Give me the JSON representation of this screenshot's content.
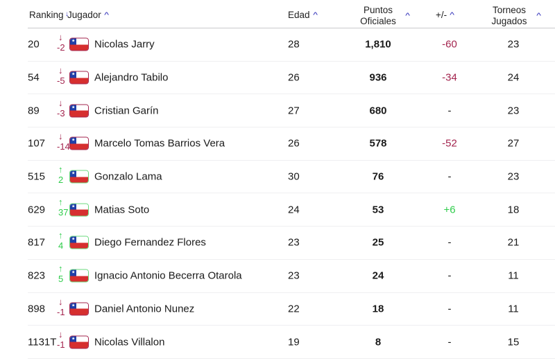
{
  "table": {
    "headers": {
      "ranking": "Ranking",
      "player": "Jugador",
      "age": "Edad",
      "points_line1": "Puntos",
      "points_line2": "Oficiales",
      "diff": "+/-",
      "tournaments_line1": "Torneos",
      "tournaments_line2": "Jugados",
      "sort_icon": "^"
    },
    "colors": {
      "down": "#a3244e",
      "up": "#2ecc4a",
      "sort": "#2b2bb8"
    },
    "rows": [
      {
        "rank": "20",
        "direction": "down",
        "arrow": "↓",
        "delta": "-2",
        "country": "Chile",
        "name": "Nicolas Jarry",
        "age": "28",
        "points": "1,810",
        "diff": "-60",
        "diff_type": "neg",
        "tournaments": "23"
      },
      {
        "rank": "54",
        "direction": "down",
        "arrow": "↓",
        "delta": "-5",
        "country": "Chile",
        "name": "Alejandro Tabilo",
        "age": "26",
        "points": "936",
        "diff": "-34",
        "diff_type": "neg",
        "tournaments": "24"
      },
      {
        "rank": "89",
        "direction": "down",
        "arrow": "↓",
        "delta": "-3",
        "country": "Chile",
        "name": "Cristian Garín",
        "age": "27",
        "points": "680",
        "diff": "-",
        "diff_type": "none",
        "tournaments": "23"
      },
      {
        "rank": "107",
        "direction": "down",
        "arrow": "↓",
        "delta": "-14",
        "country": "Chile",
        "name": "Marcelo Tomas Barrios Vera",
        "age": "26",
        "points": "578",
        "diff": "-52",
        "diff_type": "neg",
        "tournaments": "27"
      },
      {
        "rank": "515",
        "direction": "up",
        "arrow": "↑",
        "delta": "2",
        "country": "Chile",
        "name": "Gonzalo Lama",
        "age": "30",
        "points": "76",
        "diff": "-",
        "diff_type": "none",
        "tournaments": "23"
      },
      {
        "rank": "629",
        "direction": "up",
        "arrow": "↑",
        "delta": "37",
        "country": "Chile",
        "name": "Matias Soto",
        "age": "24",
        "points": "53",
        "diff": "+6",
        "diff_type": "pos",
        "tournaments": "18"
      },
      {
        "rank": "817",
        "direction": "up",
        "arrow": "↑",
        "delta": "4",
        "country": "Chile",
        "name": "Diego Fernandez Flores",
        "age": "23",
        "points": "25",
        "diff": "-",
        "diff_type": "none",
        "tournaments": "21"
      },
      {
        "rank": "823",
        "direction": "up",
        "arrow": "↑",
        "delta": "5",
        "country": "Chile",
        "name": "Ignacio Antonio Becerra Otarola",
        "age": "23",
        "points": "24",
        "diff": "-",
        "diff_type": "none",
        "tournaments": "11"
      },
      {
        "rank": "898",
        "direction": "down",
        "arrow": "↓",
        "delta": "-1",
        "country": "Chile",
        "name": "Daniel Antonio Nunez",
        "age": "22",
        "points": "18",
        "diff": "-",
        "diff_type": "none",
        "tournaments": "11"
      },
      {
        "rank": "1131T",
        "direction": "down",
        "arrow": "↓",
        "delta": "-1",
        "country": "Chile",
        "name": "Nicolas Villalon",
        "age": "19",
        "points": "8",
        "diff": "-",
        "diff_type": "none",
        "tournaments": "15"
      }
    ]
  }
}
